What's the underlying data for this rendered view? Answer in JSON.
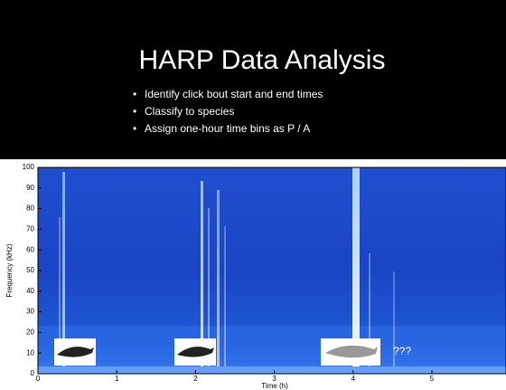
{
  "slide": {
    "title": "HARP Data Analysis",
    "bullets": [
      "Identify click bout start and end times",
      "Classify to species",
      "Assign one-hour time bins as P / A"
    ],
    "figure": {
      "y_label": "Frequency (kHz)",
      "x_label": "Time (h)",
      "y_ticks": [
        "100",
        "90",
        "80",
        "70",
        "60",
        "50",
        "40",
        "30",
        "20",
        "10",
        "0"
      ],
      "x_ticks": [
        "0",
        "1",
        "2",
        "3",
        "4",
        "5"
      ],
      "annotation": "???"
    }
  }
}
